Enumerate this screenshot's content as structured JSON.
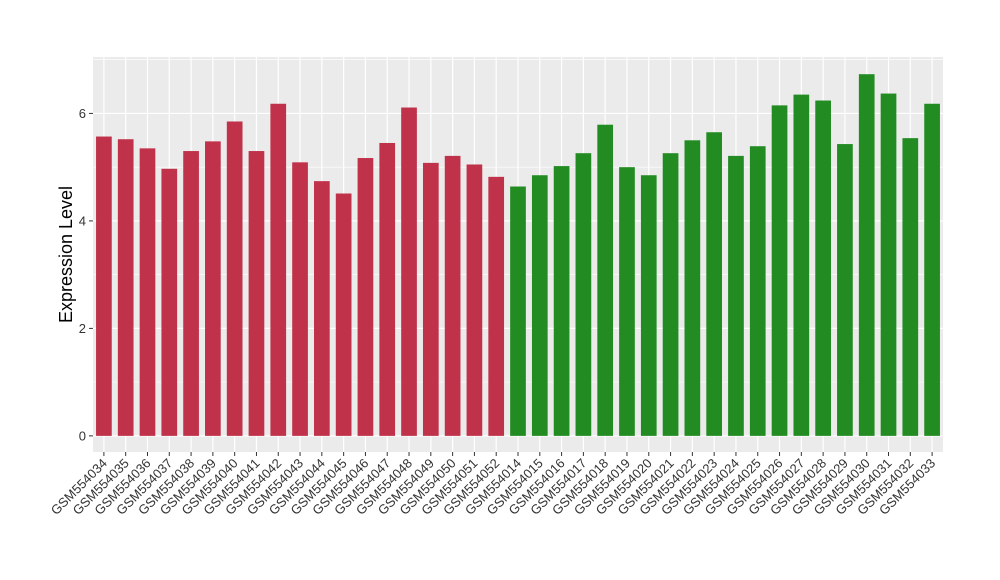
{
  "chart_data": {
    "type": "bar",
    "title": "",
    "xlabel": "",
    "ylabel": "Expression Level",
    "ylim": [
      -0.3,
      7.05
    ],
    "yticks": [
      0,
      2,
      4,
      6
    ],
    "grid": true,
    "legend": "none",
    "colors": {
      "group1": "#c0314a",
      "group2": "#228b22",
      "panel": "#ebebeb",
      "grid": "#ffffff"
    },
    "categories": [
      "GSM554034",
      "GSM554035",
      "GSM554036",
      "GSM554037",
      "GSM554038",
      "GSM554039",
      "GSM554040",
      "GSM554041",
      "GSM554042",
      "GSM554043",
      "GSM554044",
      "GSM554045",
      "GSM554046",
      "GSM554047",
      "GSM554048",
      "GSM554049",
      "GSM554050",
      "GSM554051",
      "GSM554052",
      "GSM554014",
      "GSM554015",
      "GSM554016",
      "GSM554017",
      "GSM554018",
      "GSM554019",
      "GSM554020",
      "GSM554021",
      "GSM554022",
      "GSM554023",
      "GSM554024",
      "GSM554025",
      "GSM554026",
      "GSM554027",
      "GSM554028",
      "GSM554029",
      "GSM554030",
      "GSM554031",
      "GSM554032",
      "GSM554033"
    ],
    "values": [
      5.57,
      5.52,
      5.35,
      4.97,
      5.3,
      5.48,
      5.85,
      5.3,
      6.18,
      5.09,
      4.74,
      4.51,
      5.17,
      5.45,
      6.11,
      5.08,
      5.21,
      5.05,
      4.82,
      4.64,
      4.85,
      5.02,
      5.26,
      5.79,
      5.0,
      4.85,
      5.26,
      5.5,
      5.65,
      5.21,
      5.39,
      6.15,
      6.35,
      6.24,
      5.43,
      6.73,
      6.37,
      5.54,
      6.18
    ],
    "groups": [
      1,
      1,
      1,
      1,
      1,
      1,
      1,
      1,
      1,
      1,
      1,
      1,
      1,
      1,
      1,
      1,
      1,
      1,
      1,
      2,
      2,
      2,
      2,
      2,
      2,
      2,
      2,
      2,
      2,
      2,
      2,
      2,
      2,
      2,
      2,
      2,
      2,
      2,
      2
    ]
  }
}
